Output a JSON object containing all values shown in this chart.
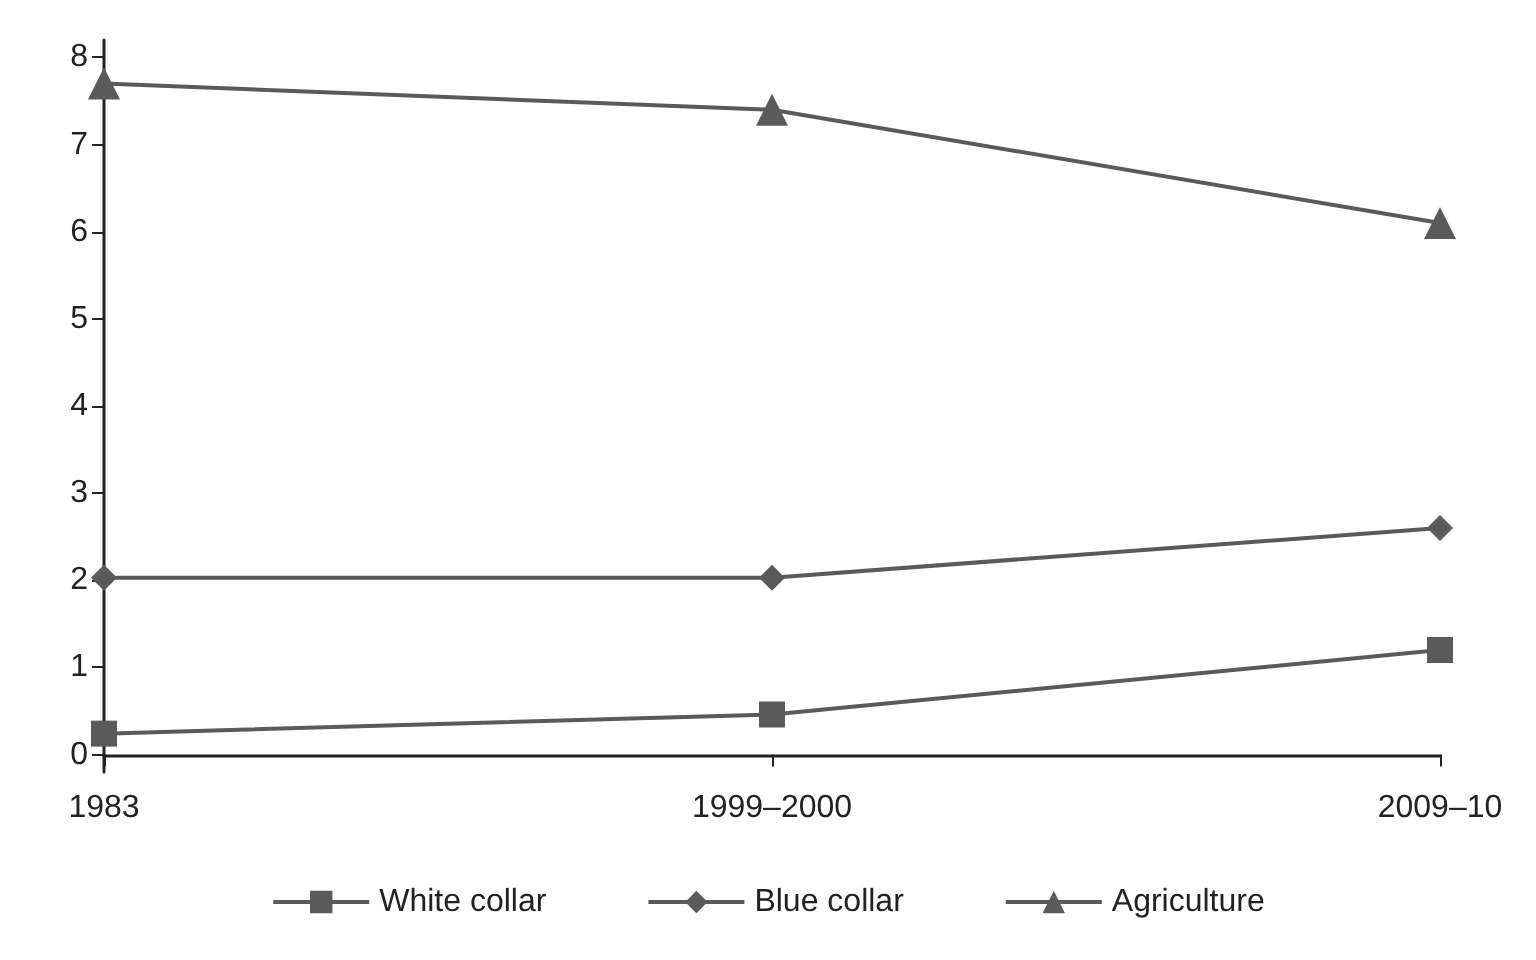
{
  "chart_data": {
    "type": "line",
    "categories": [
      "1983",
      "1999–2000",
      "2009–10"
    ],
    "series": [
      {
        "name": "White collar",
        "color": "#5a5a5a",
        "marker": "square",
        "values": [
          0.24,
          0.46,
          1.2
        ]
      },
      {
        "name": "Blue collar",
        "color": "#5a5a5a",
        "marker": "diamond",
        "values": [
          2.03,
          2.03,
          2.6
        ]
      },
      {
        "name": "Agriculture",
        "color": "#5a5a5a",
        "marker": "triangle",
        "values": [
          7.7,
          7.4,
          6.1
        ]
      }
    ],
    "ylim": [
      -0.2,
      8.2
    ],
    "yticks": [
      0,
      1,
      2,
      3,
      4,
      5,
      6,
      7,
      8
    ],
    "grid": false,
    "legend": "bottom",
    "line_style": "solid"
  }
}
